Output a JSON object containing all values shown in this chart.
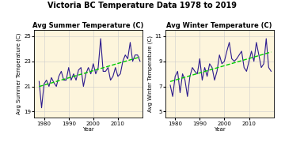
{
  "title": "Victoria BC Temperature Data 1978 to 2019",
  "years": [
    1978,
    1979,
    1980,
    1981,
    1982,
    1983,
    1984,
    1985,
    1986,
    1987,
    1988,
    1989,
    1990,
    1991,
    1992,
    1993,
    1994,
    1995,
    1996,
    1997,
    1998,
    1999,
    2000,
    2001,
    2002,
    2003,
    2004,
    2005,
    2006,
    2007,
    2008,
    2009,
    2010,
    2011,
    2012,
    2013,
    2014,
    2015,
    2016,
    2017,
    2018,
    2019
  ],
  "summer_temp": [
    21.4,
    19.3,
    21.2,
    21.5,
    21.0,
    21.7,
    21.3,
    21.0,
    21.8,
    22.2,
    21.5,
    21.5,
    22.5,
    21.5,
    22.0,
    21.5,
    22.3,
    22.5,
    21.0,
    22.0,
    22.5,
    22.0,
    22.8,
    22.0,
    22.5,
    24.8,
    22.2,
    22.2,
    22.5,
    21.5,
    21.8,
    22.5,
    21.8,
    22.0,
    23.0,
    23.5,
    23.2,
    24.5,
    23.0,
    23.5,
    23.5,
    23.0
  ],
  "winter_temp": [
    7.1,
    6.2,
    7.8,
    8.2,
    6.5,
    8.0,
    7.5,
    6.2,
    7.8,
    8.5,
    8.2,
    8.0,
    9.2,
    7.5,
    8.5,
    7.8,
    8.8,
    8.5,
    7.5,
    8.2,
    9.5,
    8.8,
    9.0,
    9.8,
    10.5,
    9.2,
    9.0,
    9.2,
    9.5,
    9.8,
    8.5,
    8.2,
    9.0,
    9.8,
    9.0,
    10.5,
    9.5,
    8.5,
    8.8,
    10.8,
    8.5,
    8.2
  ],
  "summer_ylim": [
    18.5,
    25.5
  ],
  "winter_ylim": [
    4.5,
    11.5
  ],
  "summer_yticks": [
    19,
    21,
    23,
    25
  ],
  "winter_yticks": [
    5,
    7,
    9,
    11
  ],
  "summer_ylabel": "Avg Summer Temperature (C)",
  "winter_ylabel": "Avg Winter Temperature (C)",
  "summer_title": "Avg Summer Temperature (C)",
  "winter_title": "Avg Winter Temperature (C)",
  "xlabel": "Year",
  "line_color": "#2d1b8e",
  "trend_color": "#00cc00",
  "bg_color": "#fdf5dc",
  "grid_color": "#cccccc",
  "title_fontsize": 7,
  "axis_title_fontsize": 6,
  "tick_fontsize": 5,
  "ylabel_fontsize": 5
}
